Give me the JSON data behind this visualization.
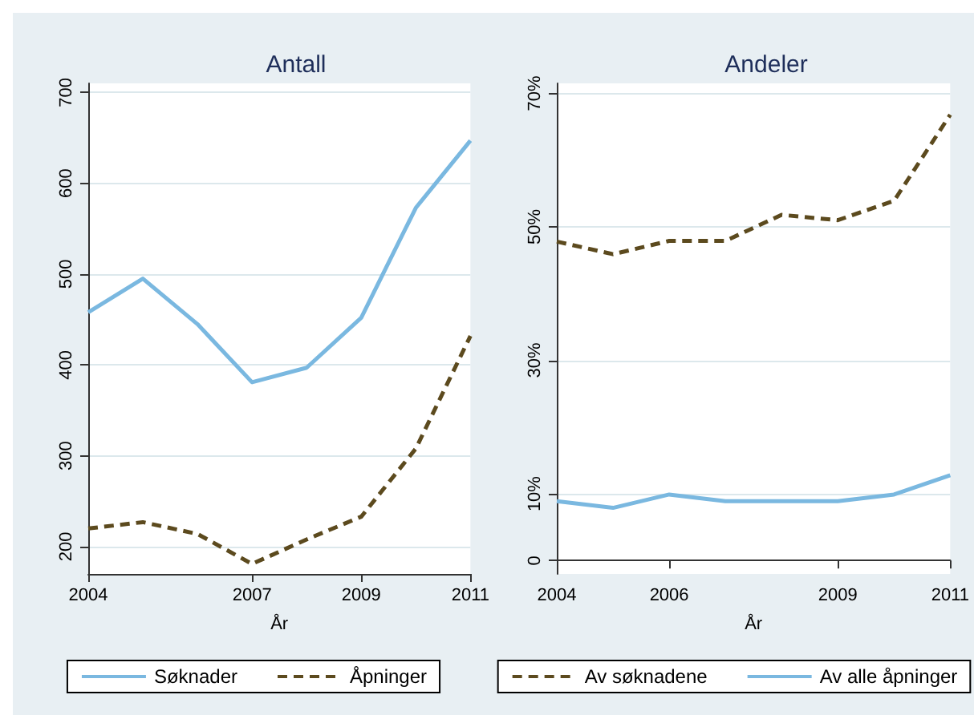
{
  "chart_data": [
    {
      "type": "line",
      "title": "Antall",
      "xlabel": "År",
      "x": [
        2004,
        2005,
        2006,
        2007,
        2008,
        2009,
        2010,
        2011
      ],
      "xlim": [
        2004,
        2011
      ],
      "xticks": [
        2004,
        2007,
        2009,
        2011
      ],
      "ylim": [
        170,
        710
      ],
      "yticks": [
        200,
        300,
        400,
        500,
        600,
        700
      ],
      "grid": "y",
      "legend": "bottom",
      "marker": "none",
      "series": [
        {
          "name": "Søknader",
          "color": "#7ab8e0",
          "line_style": "solid",
          "values": [
            458,
            495,
            445,
            381,
            397,
            452,
            573,
            647
          ]
        },
        {
          "name": "Åpninger",
          "color": "#5c4a1e",
          "line_style": "dashed",
          "values": [
            220,
            227,
            214,
            181,
            208,
            233,
            308,
            432
          ]
        }
      ]
    },
    {
      "type": "line",
      "title": "Andeler",
      "xlabel": "År",
      "x": [
        2004,
        2005,
        2006,
        2007,
        2008,
        2009,
        2010,
        2011
      ],
      "xlim": [
        2004,
        2011
      ],
      "xticks": [
        2004,
        2006,
        2009,
        2011
      ],
      "ylim": [
        -2,
        71.5
      ],
      "yticks": [
        0,
        {
          "value": 10,
          "label": "10%"
        },
        {
          "value": 30,
          "label": "30%"
        },
        {
          "value": 50,
          "label": "50%"
        },
        {
          "value": 70,
          "label": "70%"
        }
      ],
      "grid": "y",
      "legend": "bottom",
      "marker": "none",
      "series": [
        {
          "name": "Av søknadene",
          "color": "#5c4a1e",
          "line_style": "dashed",
          "values": [
            47.8,
            45.9,
            47.9,
            47.9,
            51.8,
            51.0,
            53.9,
            66.8
          ]
        },
        {
          "name": "Av alle åpninger",
          "color": "#7ab8e0",
          "line_style": "solid",
          "values": [
            8.9,
            7.9,
            9.9,
            8.9,
            8.9,
            8.9,
            9.9,
            12.8
          ]
        }
      ]
    }
  ]
}
